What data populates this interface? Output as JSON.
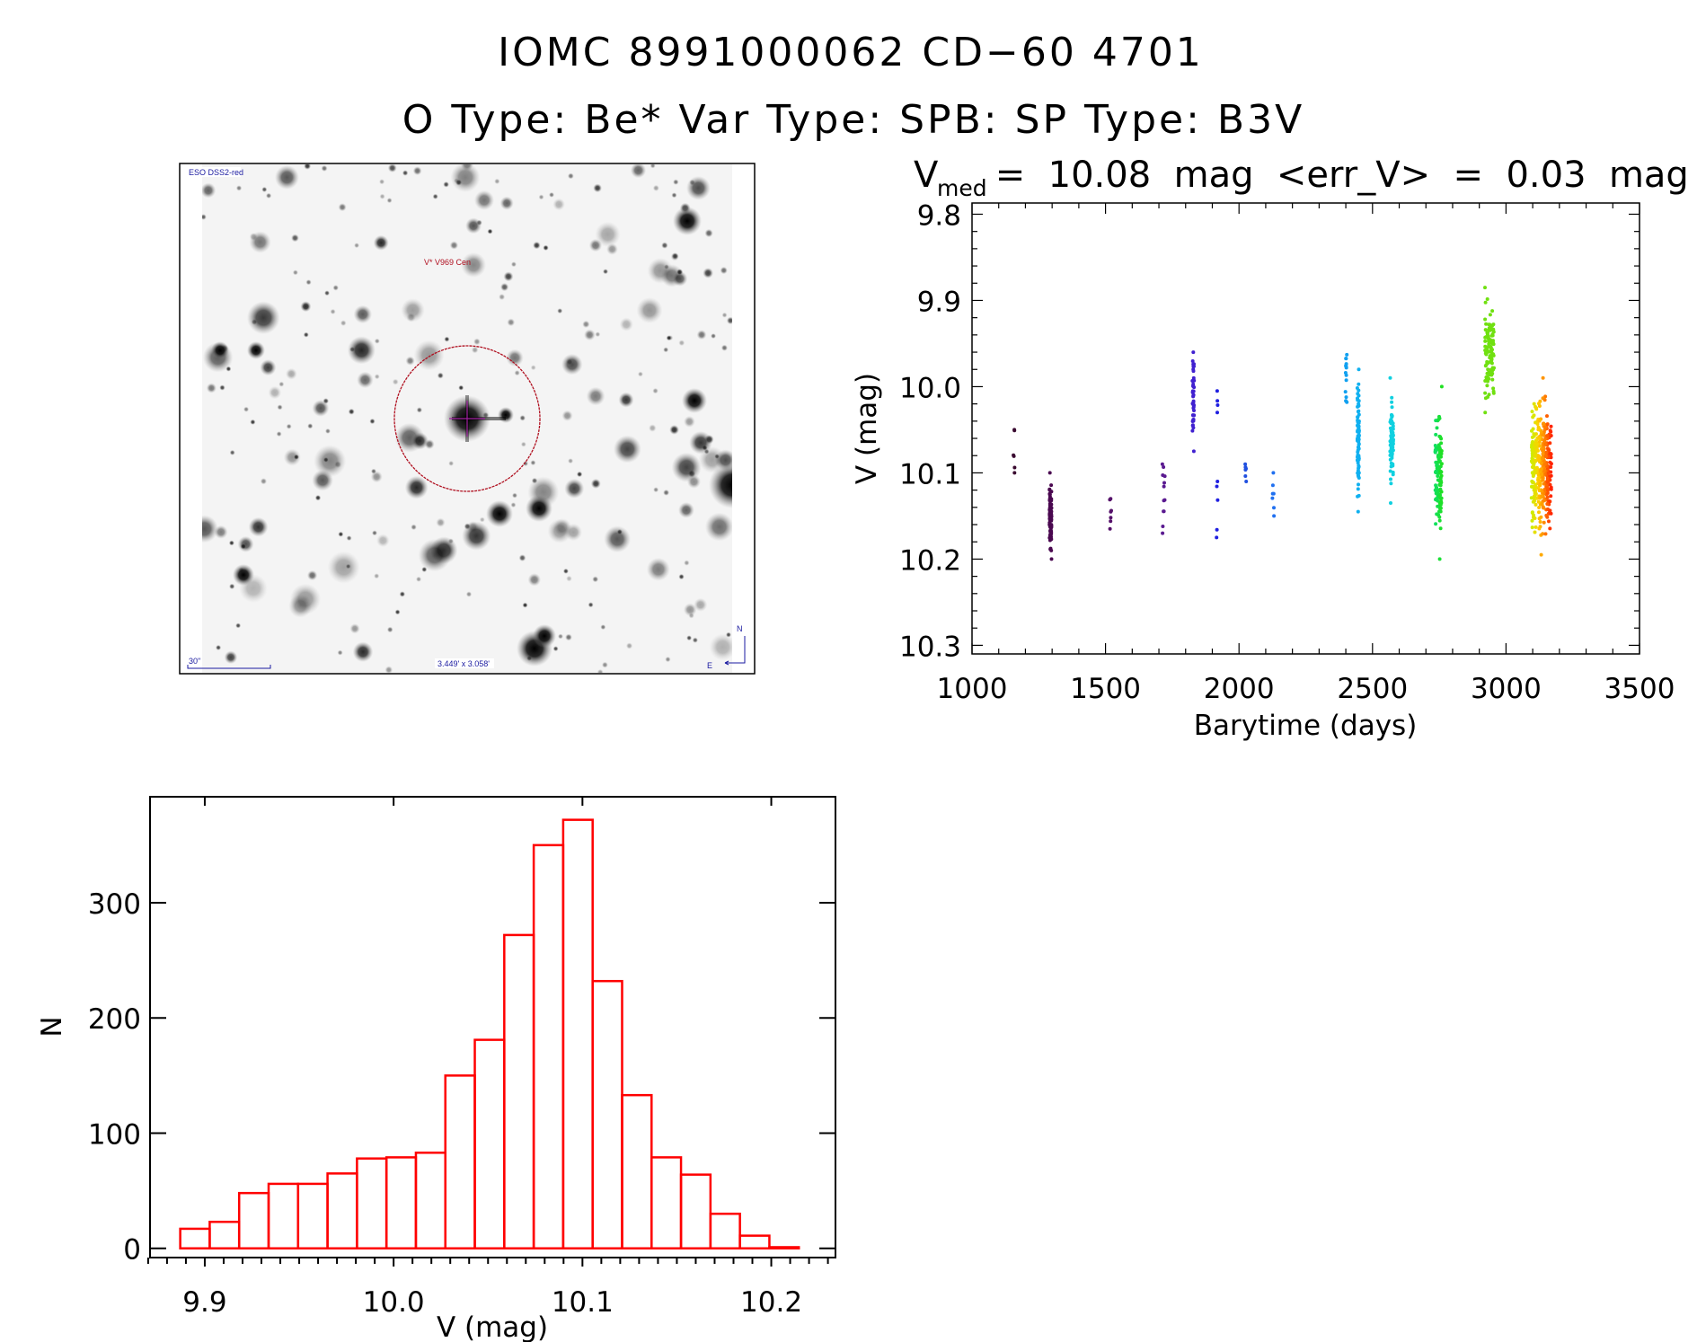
{
  "header": {
    "title_line1": "IOMC 8991000062    CD−60  4701",
    "title_line2": "O Type: Be*   Var Type: SPB:   SP Type: B3V"
  },
  "finder_image": {
    "survey_label": "ESO DSS2-red",
    "target_label": "V* V969 Cen",
    "scale_label": "30\"",
    "fov_label": "3.449' x 3.058'",
    "north_label": "N",
    "east_label": "E",
    "circle_color": "#b01020"
  },
  "chart_data": [
    {
      "type": "scatter",
      "title_prefix": "V",
      "title_sub": "med",
      "title_rest": " =  10.08  mag  <err_V>  =  0.03  mag",
      "xlabel": "Barytime (days)",
      "ylabel": "V (mag)",
      "xlim": [
        1000,
        3500
      ],
      "ylim": [
        9.787,
        10.31
      ],
      "y_inverted": true,
      "xticks": [
        "1000",
        "1500",
        "2000",
        "2500",
        "3000",
        "3500"
      ],
      "yticks": [
        "9.8",
        "9.9",
        "10.0",
        "10.1",
        "10.2",
        "10.3"
      ],
      "groups": [
        {
          "x": [
            1155,
            1160
          ],
          "v": [
            10.05,
            10.1
          ],
          "n": 6,
          "colors": [
            "#3a0a30"
          ]
        },
        {
          "x": [
            1290,
            1298
          ],
          "v": [
            10.1,
            10.2
          ],
          "n": 90,
          "colors": [
            "#4a0850"
          ]
        },
        {
          "x": [
            1515,
            1522
          ],
          "v": [
            10.13,
            10.165
          ],
          "n": 7,
          "colors": [
            "#55106a"
          ]
        },
        {
          "x": [
            1713,
            1722
          ],
          "v": [
            10.09,
            10.17
          ],
          "n": 12,
          "colors": [
            "#5a1a90"
          ]
        },
        {
          "x": [
            1825,
            1832
          ],
          "v": [
            9.96,
            10.075
          ],
          "n": 45,
          "colors": [
            "#4020d0"
          ]
        },
        {
          "x": [
            1915,
            1920
          ],
          "v": [
            10.005,
            10.03
          ],
          "n": 4,
          "colors": [
            "#2020e0"
          ]
        },
        {
          "x": [
            1915,
            1920
          ],
          "v": [
            10.11,
            10.175
          ],
          "n": 5,
          "colors": [
            "#2020e0"
          ]
        },
        {
          "x": [
            2022,
            2028
          ],
          "v": [
            10.09,
            10.11
          ],
          "n": 6,
          "colors": [
            "#2050e0"
          ]
        },
        {
          "x": [
            2125,
            2132
          ],
          "v": [
            10.1,
            10.15
          ],
          "n": 7,
          "colors": [
            "#2070f0"
          ]
        },
        {
          "x": [
            2398,
            2404
          ],
          "v": [
            9.963,
            10.018
          ],
          "n": 14,
          "colors": [
            "#10a0f0"
          ]
        },
        {
          "x": [
            2443,
            2450
          ],
          "v": [
            9.98,
            10.145
          ],
          "n": 90,
          "colors": [
            "#10b0f0"
          ]
        },
        {
          "x": [
            2566,
            2578
          ],
          "v": [
            9.99,
            10.135
          ],
          "n": 70,
          "colors": [
            "#10d0e0"
          ]
        },
        {
          "x": [
            2735,
            2760
          ],
          "v": [
            10.0,
            10.2
          ],
          "n": 110,
          "colors": [
            "#10e060",
            "#20e020"
          ]
        },
        {
          "x": [
            2920,
            2955
          ],
          "v": [
            9.885,
            10.03
          ],
          "n": 110,
          "colors": [
            "#70e010"
          ]
        },
        {
          "x": [
            3095,
            3170
          ],
          "v": [
            9.99,
            10.195
          ],
          "n": 360,
          "colors": [
            "#c8f000",
            "#ffd000",
            "#ff8000",
            "#ff2000"
          ]
        }
      ]
    },
    {
      "type": "bar",
      "subtype": "histogram",
      "xlabel": "V (mag)",
      "ylabel": "N",
      "xlim": [
        9.871,
        10.234
      ],
      "ylim": [
        -8,
        392
      ],
      "bin_start": 9.887,
      "bin_width": 0.0156,
      "values": [
        17,
        23,
        48,
        56,
        56,
        65,
        78,
        79,
        83,
        150,
        181,
        272,
        350,
        372,
        232,
        133,
        79,
        64,
        30,
        11,
        1
      ],
      "xticks": [
        "9.9",
        "10.0",
        "10.1",
        "10.2"
      ],
      "yticks": [
        "0",
        "100",
        "200",
        "300"
      ],
      "bar_color": "#ff0000"
    }
  ]
}
